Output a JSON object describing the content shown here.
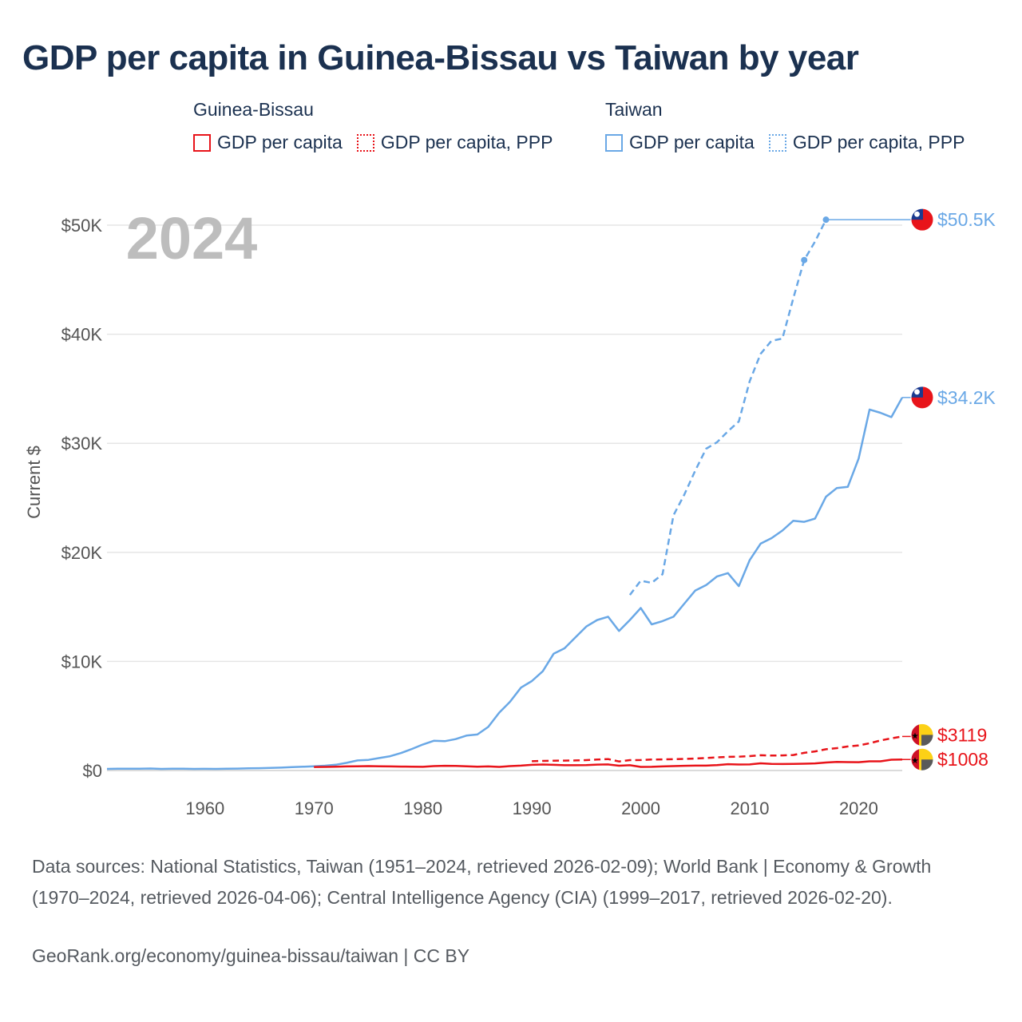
{
  "title": "GDP per capita in Guinea-Bissau vs Taiwan by year",
  "legend": {
    "groups": [
      {
        "name": "Guinea-Bissau",
        "items": [
          "GDP per capita",
          "GDP per capita, PPP"
        ],
        "color": "#e8141a"
      },
      {
        "name": "Taiwan",
        "items": [
          "GDP per capita",
          "GDP per capita, PPP"
        ],
        "color": "#6aa8e6"
      }
    ]
  },
  "year_watermark": "2024",
  "footer": {
    "sources": "Data sources: National Statistics, Taiwan (1951–2024, retrieved 2026-02-09); World Bank | Economy & Growth (1970–2024, retrieved 2026-04-06); Central Intelligence Agency (CIA) (1999–2017, retrieved 2026-02-20).",
    "link": "GeoRank.org/economy/guinea-bissau/taiwan | CC BY"
  },
  "chart_data": {
    "type": "line",
    "title": "GDP per capita in Guinea-Bissau vs Taiwan by year",
    "xlabel": "",
    "ylabel": "Current $",
    "xlim": [
      1951,
      2024
    ],
    "ylim": [
      0,
      50000
    ],
    "x_ticks": [
      1960,
      1970,
      1980,
      1990,
      2000,
      2010,
      2020
    ],
    "y_ticks": [
      0,
      10000,
      20000,
      30000,
      40000,
      50000
    ],
    "y_tick_labels": [
      "$0",
      "$10K",
      "$20K",
      "$30K",
      "$40K",
      "$50K"
    ],
    "grid": true,
    "series": [
      {
        "name": "Taiwan GDP per capita",
        "country": "Taiwan",
        "color": "#6aa8e6",
        "style": "solid",
        "end_label": "$34.2K",
        "x": [
          1951,
          1952,
          1953,
          1954,
          1955,
          1956,
          1957,
          1958,
          1959,
          1960,
          1961,
          1962,
          1963,
          1964,
          1965,
          1966,
          1967,
          1968,
          1969,
          1970,
          1971,
          1972,
          1973,
          1974,
          1975,
          1976,
          1977,
          1978,
          1979,
          1980,
          1981,
          1982,
          1983,
          1984,
          1985,
          1986,
          1987,
          1988,
          1989,
          1990,
          1991,
          1992,
          1993,
          1994,
          1995,
          1996,
          1997,
          1998,
          1999,
          2000,
          2001,
          2002,
          2003,
          2004,
          2005,
          2006,
          2007,
          2008,
          2009,
          2010,
          2011,
          2012,
          2013,
          2014,
          2015,
          2016,
          2017,
          2018,
          2019,
          2020,
          2021,
          2022,
          2023,
          2024
        ],
        "values": [
          150,
          160,
          170,
          170,
          180,
          150,
          160,
          170,
          150,
          155,
          150,
          160,
          175,
          200,
          215,
          235,
          265,
          305,
          345,
          390,
          440,
          525,
          700,
          920,
          970,
          1140,
          1310,
          1600,
          1980,
          2390,
          2720,
          2690,
          2880,
          3200,
          3300,
          4000,
          5300,
          6300,
          7600,
          8200,
          9100,
          10700,
          11200,
          12200,
          13200,
          13800,
          14100,
          12800,
          13800,
          14900,
          13400,
          13700,
          14100,
          15300,
          16500,
          17000,
          17800,
          18100,
          16900,
          19300,
          20800,
          21300,
          22000,
          22900,
          22800,
          23100,
          25100,
          25900,
          26000,
          28600,
          33100,
          32800,
          32400,
          34200
        ]
      },
      {
        "name": "Taiwan GDP per capita, PPP",
        "country": "Taiwan",
        "color": "#6aa8e6",
        "style": "dashed",
        "end_label": "$50.5K",
        "x": [
          1999,
          2000,
          2001,
          2002,
          2003,
          2004,
          2005,
          2006,
          2007,
          2008,
          2009,
          2010,
          2011,
          2012,
          2013,
          2014,
          2015,
          2016,
          2017
        ],
        "values": [
          16100,
          17400,
          17200,
          18000,
          23400,
          25300,
          27500,
          29500,
          30100,
          31100,
          32000,
          35700,
          38200,
          39400,
          39600,
          43300,
          46800,
          48500,
          50500
        ]
      },
      {
        "name": "Guinea-Bissau GDP per capita",
        "country": "Guinea-Bissau",
        "color": "#e8141a",
        "style": "solid",
        "end_label": "$1008",
        "x": [
          1970,
          1971,
          1972,
          1973,
          1974,
          1975,
          1976,
          1977,
          1978,
          1979,
          1980,
          1981,
          1982,
          1983,
          1984,
          1985,
          1986,
          1987,
          1988,
          1989,
          1990,
          1991,
          1992,
          1993,
          1994,
          1995,
          1996,
          1997,
          1998,
          1999,
          2000,
          2001,
          2002,
          2003,
          2004,
          2005,
          2006,
          2007,
          2008,
          2009,
          2010,
          2011,
          2012,
          2013,
          2014,
          2015,
          2016,
          2017,
          2018,
          2019,
          2020,
          2021,
          2022,
          2023,
          2024
        ],
        "values": [
          320,
          330,
          350,
          370,
          380,
          400,
          390,
          370,
          360,
          350,
          340,
          400,
          430,
          420,
          380,
          350,
          370,
          330,
          400,
          450,
          520,
          550,
          520,
          480,
          480,
          500,
          540,
          560,
          440,
          480,
          330,
          340,
          370,
          400,
          430,
          450,
          450,
          500,
          580,
          550,
          560,
          660,
          600,
          590,
          600,
          620,
          650,
          730,
          780,
          770,
          760,
          840,
          840,
          990,
          1008
        ]
      },
      {
        "name": "Guinea-Bissau GDP per capita, PPP",
        "country": "Guinea-Bissau",
        "color": "#e8141a",
        "style": "dashed",
        "end_label": "$3119",
        "x": [
          1990,
          1991,
          1992,
          1993,
          1994,
          1995,
          1996,
          1997,
          1998,
          1999,
          2000,
          2001,
          2002,
          2003,
          2004,
          2005,
          2006,
          2007,
          2008,
          2009,
          2010,
          2011,
          2012,
          2013,
          2014,
          2015,
          2016,
          2017,
          2018,
          2019,
          2020,
          2021,
          2022,
          2023,
          2024
        ],
        "values": [
          850,
          880,
          900,
          910,
          920,
          950,
          1000,
          1050,
          830,
          950,
          960,
          1000,
          1020,
          1030,
          1060,
          1100,
          1150,
          1200,
          1250,
          1270,
          1320,
          1400,
          1370,
          1380,
          1420,
          1620,
          1750,
          1950,
          2050,
          2200,
          2300,
          2500,
          2750,
          2950,
          3119
        ]
      }
    ]
  }
}
